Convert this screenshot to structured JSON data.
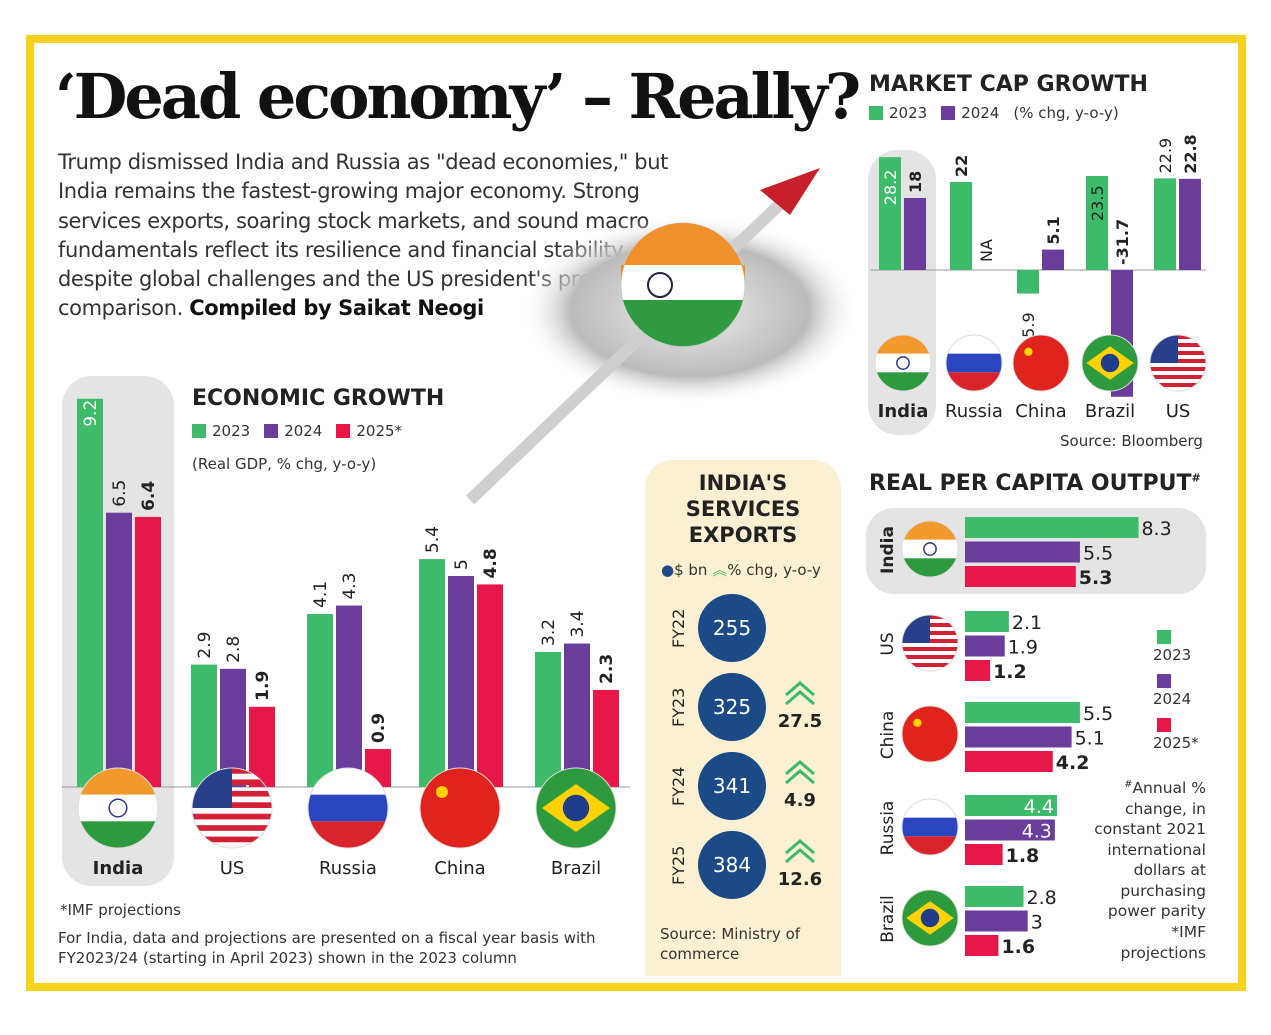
{
  "headline": "‘Dead economy’ – Really?",
  "intro": "Trump dismissed India and Russia as \"dead economies,\" but India remains the fastest-growing major economy. Strong services exports, soaring stock markets, and sound macro fundamentals reflect its resilience and financial stability, despite global challenges and the US president's provocative comparison.",
  "byline": "Compiled by Saikat Neogi",
  "colors": {
    "y2023": "#3dbb6a",
    "y2024": "#6a3d9a",
    "y2025": "#e8174a",
    "frame": "#f6d21c",
    "navy": "#1b4a86"
  },
  "chart_data": [
    {
      "type": "bar",
      "title": "ECONOMIC GROWTH",
      "subtitle": "(Real GDP, % chg, y-o-y)",
      "categories": [
        "India",
        "US",
        "Russia",
        "China",
        "Brazil"
      ],
      "series": [
        {
          "name": "2023",
          "values": [
            9.2,
            2.9,
            4.1,
            5.4,
            3.2
          ]
        },
        {
          "name": "2024",
          "values": [
            6.5,
            2.8,
            4.3,
            5,
            3.4
          ]
        },
        {
          "name": "2025*",
          "values": [
            6.4,
            1.9,
            0.9,
            4.8,
            2.3
          ]
        }
      ],
      "labels": [
        [
          "9.2",
          "6.5",
          "6.4"
        ],
        [
          "2.9",
          "2.8",
          "1.9"
        ],
        [
          "4.1",
          "4.3",
          "0.9"
        ],
        [
          "5.4",
          "5",
          "4.8"
        ],
        [
          "3.2",
          "3.4",
          "2.3"
        ]
      ],
      "footnote": "*IMF projections",
      "note": "For India, data and projections are presented on a fiscal year basis with FY2023/24 (starting in April 2023) shown in the 2023 column"
    },
    {
      "type": "bar",
      "title": "MARKET CAP GROWTH",
      "subtitle": "(% chg, y-o-y)",
      "categories": [
        "India",
        "Russia",
        "China",
        "Brazil",
        "US"
      ],
      "series": [
        {
          "name": "2023",
          "values": [
            28.2,
            22,
            -5.9,
            23.5,
            22.9
          ]
        },
        {
          "name": "2024",
          "values": [
            18,
            null,
            5.1,
            -31.7,
            22.8
          ]
        }
      ],
      "labels": [
        [
          "28.2",
          "18"
        ],
        [
          "22",
          "NA"
        ],
        [
          "-5.9",
          "5.1"
        ],
        [
          "23.5",
          "-31.7"
        ],
        [
          "22.9",
          "22.8"
        ]
      ],
      "source": "Source: Bloomberg"
    },
    {
      "type": "table",
      "title": "INDIA'S SERVICES EXPORTS",
      "legend": [
        "$ bn",
        "% chg, y-o-y"
      ],
      "rows": [
        {
          "fy": "FY22",
          "value": "255",
          "chg": null
        },
        {
          "fy": "FY23",
          "value": "325",
          "chg": "27.5"
        },
        {
          "fy": "FY24",
          "value": "341",
          "chg": "4.9"
        },
        {
          "fy": "FY25",
          "value": "384",
          "chg": "12.6"
        }
      ],
      "source": "Source: Ministry of commerce"
    },
    {
      "type": "bar",
      "orientation": "horizontal",
      "title": "REAL PER CAPITA OUTPUT",
      "title_mark": "#",
      "categories": [
        "India",
        "US",
        "China",
        "Russia",
        "Brazil"
      ],
      "series": [
        {
          "name": "2023",
          "values": [
            8.3,
            2.1,
            5.5,
            4.4,
            2.8
          ]
        },
        {
          "name": "2024",
          "values": [
            5.5,
            1.9,
            5.1,
            4.3,
            3
          ]
        },
        {
          "name": "2025*",
          "values": [
            5.3,
            1.2,
            4.2,
            1.8,
            1.6
          ]
        }
      ],
      "labels": [
        [
          "8.3",
          "5.5",
          "5.3"
        ],
        [
          "2.1",
          "1.9",
          "1.2"
        ],
        [
          "5.5",
          "5.1",
          "4.2"
        ],
        [
          "4.4",
          "4.3",
          "1.8"
        ],
        [
          "2.8",
          "3",
          "1.6"
        ]
      ],
      "note": "Annual % change, in constant 2021 international dollars at purchasing power parity",
      "note_mark": "#",
      "footnote": "*IMF projections"
    }
  ]
}
